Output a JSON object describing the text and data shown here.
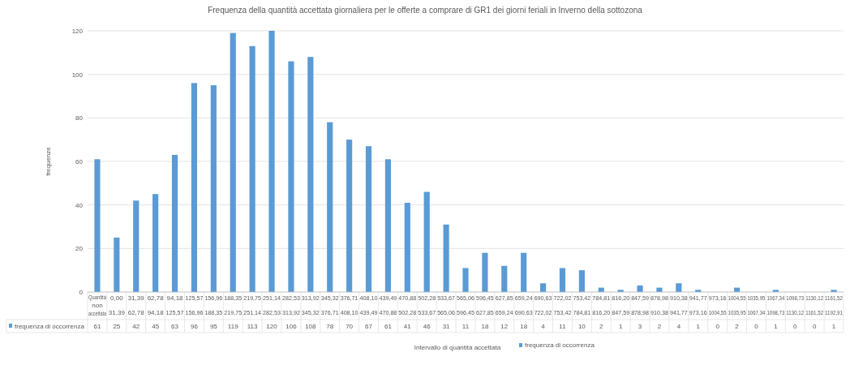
{
  "chart_data": {
    "type": "bar",
    "title": "Frequenza della quantità accettata giornaliera per le offerte a comprare di GR1 dei giorni feriali in Inverno della sottozona",
    "xlabel": "Intervallo di quantità accettata",
    "ylabel": "frequenze",
    "categories": [
      "Quantità\nnon\naccettata",
      "0,00\n31,39",
      "31,39\n62,78",
      "62,78\n94,18",
      "94,18\n125,57",
      "125,57\n156,96",
      "156,96\n188,35",
      "188,35\n219,75",
      "219,75\n251,14",
      "251,14\n282,53",
      "282,53\n313,92",
      "313,92\n345,32",
      "345,32\n376,71",
      "376,71\n408,10",
      "408,10\n439,49",
      "439,49\n470,88",
      "470,88\n502,28",
      "502,28\n533,67",
      "533,67\n565,06",
      "565,06\n596,45",
      "596,45\n627,85",
      "627,85\n659,24",
      "659,24\n690,63",
      "690,63\n722,02",
      "722,02\n753,42",
      "753,42\n784,81",
      "784,81\n816,20",
      "816,20\n847,59",
      "847,59\n878,98",
      "878,98\n910,38",
      "910,38\n941,77",
      "941,77\n973,16",
      "973,16\n1004,55",
      "1004,55\n1035,95",
      "1035,95\n1067,34",
      "1067,34\n1098,73",
      "1098,73\n1130,12",
      "1130,12\n1161,52",
      "1161,52\n1192,91"
    ],
    "series": [
      {
        "name": "frequenza di occorrenza",
        "color": "#5b9bd5",
        "values": [
          61,
          25,
          42,
          45,
          63,
          96,
          95,
          119,
          113,
          120,
          106,
          108,
          78,
          70,
          67,
          61,
          41,
          46,
          31,
          11,
          18,
          12,
          18,
          4,
          11,
          10,
          2,
          1,
          3,
          2,
          4,
          1,
          0,
          2,
          0,
          1,
          0,
          0,
          1
        ]
      }
    ],
    "ylim": [
      0,
      120
    ],
    "yticks": [
      0,
      20,
      40,
      60,
      80,
      100,
      120
    ],
    "grid": "y",
    "legend": "bottom",
    "data_labels": true
  }
}
